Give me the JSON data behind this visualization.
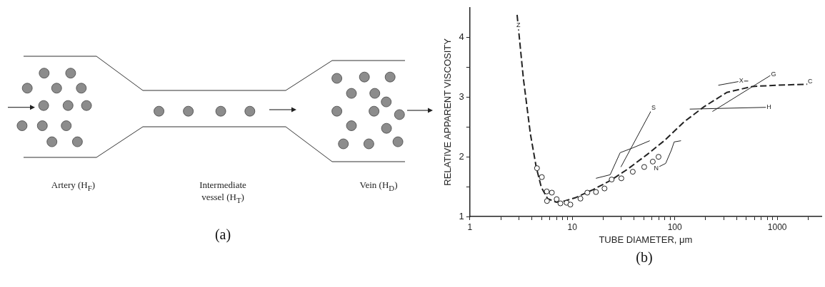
{
  "chart_data": [
    {
      "type": "other",
      "annotations": [
        "Artery (H$_{F}$)",
        "Intermediate vessel (H$_{T}$)",
        "Vein (H$_{D}$)",
        "(a)"
      ]
    },
    {
      "type": "line",
      "xlabel": "TUBE DIAMETER, μm",
      "ylabel": "RELATIVE APPARENT VISCOSITY",
      "log": "x",
      "grid": false,
      "legend": false,
      "xlim": [
        1,
        2700
      ],
      "ylim": [
        1,
        4.5
      ],
      "xticks": [
        1,
        {
          "value": 2,
          "label": null
        },
        {
          "value": 3,
          "label": null
        },
        {
          "value": 4,
          "label": null
        },
        {
          "value": 5,
          "label": null
        },
        {
          "value": 6,
          "label": null
        },
        {
          "value": 7,
          "label": null
        },
        {
          "value": 8,
          "label": null
        },
        {
          "value": 9,
          "label": null
        },
        10,
        {
          "value": 20,
          "label": null
        },
        {
          "value": 30,
          "label": null
        },
        {
          "value": 40,
          "label": null
        },
        {
          "value": 50,
          "label": null
        },
        {
          "value": 60,
          "label": null
        },
        {
          "value": 70,
          "label": null
        },
        {
          "value": 80,
          "label": null
        },
        {
          "value": 90,
          "label": null
        },
        100,
        {
          "value": 200,
          "label": null
        },
        {
          "value": 300,
          "label": null
        },
        {
          "value": 400,
          "label": null
        },
        {
          "value": 500,
          "label": null
        },
        {
          "value": 600,
          "label": null
        },
        {
          "value": 700,
          "label": null
        },
        {
          "value": 800,
          "label": null
        },
        {
          "value": 900,
          "label": null
        },
        1000,
        {
          "value": 2000,
          "label": null
        }
      ],
      "yticks": [
        1,
        {
          "value": 1.5,
          "label": null
        },
        2,
        {
          "value": 2.5,
          "label": null
        },
        3,
        {
          "value": 3.5,
          "label": null
        },
        4
      ],
      "series": [
        {
          "type": "line",
          "line_style": "dashed",
          "color": "#222222",
          "x": [
            2.89,
            3.33,
            3.9,
            4.44,
            4.98,
            5.73,
            6.95,
            8.41,
            10.9,
            15.9,
            23.4,
            34.4,
            53.8,
            78.9,
            124,
            193,
            322,
            573,
            986,
            2196
          ],
          "values": [
            4.38,
            3.31,
            2.38,
            1.83,
            1.49,
            1.3,
            1.24,
            1.26,
            1.32,
            1.45,
            1.6,
            1.79,
            2.04,
            2.27,
            2.59,
            2.84,
            3.08,
            3.18,
            3.2,
            3.22
          ]
        },
        {
          "type": "scatter",
          "marker": "circle",
          "color": "#222222",
          "x": [
            4.52,
            5.04,
            5.63,
            6.31,
            5.66,
            7.03,
            7.65,
            8.8,
            9.57,
            12,
            14,
            17,
            20.6,
            24.2,
            30.1,
            38.9,
            50.3,
            61,
            69.4
          ],
          "values": [
            1.81,
            1.66,
            1.42,
            1.4,
            1.26,
            1.29,
            1.22,
            1.23,
            1.2,
            1.3,
            1.4,
            1.41,
            1.47,
            1.62,
            1.64,
            1.75,
            1.83,
            1.92,
            2
          ]
        },
        {
          "type": "line",
          "color": "#222222",
          "x": [
            29.8,
            60.4
          ],
          "values": [
            1.83,
            2.81
          ]
        },
        {
          "type": "line",
          "color": "#222222",
          "x": [
            140,
            789
          ],
          "values": [
            2.8,
            2.83
          ]
        },
        {
          "type": "line",
          "color": "#222222",
          "x": [
            233,
            869
          ],
          "values": [
            2.76,
            3.37
          ]
        },
        {
          "type": "line",
          "color": "#222222",
          "x": [
            266,
            445,
            521
          ],
          "values": [
            3.2,
            3.27,
            3.27
          ]
        },
        {
          "type": "line",
          "color": "#222222",
          "x": [
            69.4,
            81.5,
            92.5,
            98.6,
            115
          ],
          "values": [
            1.83,
            1.89,
            2.11,
            2.25,
            2.27
          ]
        },
        {
          "type": "line",
          "color": "#222222",
          "x": [
            17,
            23.4,
            29.3,
            38.9,
            57
          ],
          "values": [
            1.64,
            1.7,
            2.07,
            2.15,
            2.27
          ]
        }
      ],
      "annotations": [
        {
          "text": "Z",
          "x": 2.97,
          "y": 4.2
        },
        {
          "text": "S",
          "x": 62,
          "y": 2.82
        },
        {
          "text": "H",
          "x": 830,
          "y": 2.83
        },
        {
          "text": "G",
          "x": 920,
          "y": 3.38
        },
        {
          "text": "C",
          "x": 2100,
          "y": 3.26
        },
        {
          "text": "X",
          "x": 445,
          "y": 3.27
        },
        {
          "text": "N",
          "x": 66,
          "y": 1.81
        },
        "(b)"
      ]
    }
  ]
}
